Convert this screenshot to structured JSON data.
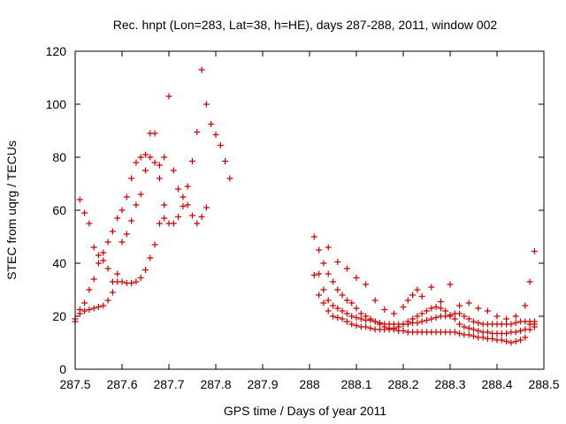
{
  "chart_data": {
    "type": "scatter",
    "title": "Rec. hnpt (Lon=283, Lat=38, h=HE), days 287-288, 2011, window 002",
    "xlabel": "GPS time / Days of year 2011",
    "ylabel": "STEC from uqrg / TECUs",
    "xlim": [
      287.5,
      288.5
    ],
    "ylim": [
      0,
      120
    ],
    "xticks": [
      287.5,
      287.6,
      287.7,
      287.8,
      287.9,
      288,
      288.1,
      288.2,
      288.3,
      288.4,
      288.5
    ],
    "xtick_labels": [
      "287.5",
      "287.6",
      "287.7",
      "287.8",
      "287.9",
      "288",
      "288.1",
      "288.2",
      "288.3",
      "288.4",
      "288.5"
    ],
    "yticks": [
      0,
      20,
      40,
      60,
      80,
      100,
      120
    ],
    "ytick_labels": [
      "0",
      "20",
      "40",
      "60",
      "80",
      "100",
      "120"
    ],
    "grid": false,
    "legend": "none",
    "marker": "+",
    "color": "#cc0000",
    "series": [
      {
        "x": [
          287.5,
          287.51,
          287.52,
          287.53,
          287.54,
          287.55,
          287.56,
          287.57,
          287.58,
          287.59,
          287.6,
          287.61,
          287.62,
          287.63,
          287.64,
          287.65,
          287.66,
          287.67,
          287.68,
          287.69,
          287.7,
          287.71,
          287.72,
          287.73,
          287.74,
          287.75,
          287.76,
          287.77,
          287.78,
          287.79,
          287.8,
          287.81,
          287.82,
          287.83
        ],
        "y": [
          19,
          21,
          22,
          22.5,
          23,
          23.5,
          24,
          26,
          29,
          33,
          33,
          32.5,
          32.5,
          33,
          34.5,
          37.5,
          42,
          47,
          55,
          57,
          55,
          55,
          57.5,
          61.5,
          69,
          78.5,
          89.5,
          113,
          100,
          92.5,
          88.5,
          84.5,
          78.5,
          72
        ]
      },
      {
        "x": [
          287.5,
          287.51,
          287.52,
          287.53,
          287.54,
          287.55,
          287.56,
          287.57,
          287.58,
          287.59,
          287.6,
          287.61,
          287.62,
          287.63,
          287.64,
          287.65,
          287.66,
          287.67,
          287.68,
          287.69
        ],
        "y": [
          18,
          22.5,
          25,
          30,
          34,
          40,
          44,
          48,
          52,
          57,
          60,
          65,
          72,
          78,
          80,
          81,
          89,
          89,
          72,
          62
        ]
      },
      {
        "x": [
          287.51,
          287.52,
          287.53,
          287.54,
          287.55,
          287.56,
          287.57,
          287.58,
          287.59,
          287.6,
          287.61,
          287.62,
          287.63,
          287.64,
          287.65,
          287.66,
          287.67,
          287.68,
          287.69,
          287.7,
          287.71,
          287.72,
          287.73,
          287.74,
          287.75,
          287.76,
          287.77,
          287.78
        ],
        "y": [
          64,
          59,
          55,
          46,
          43,
          41,
          38,
          33,
          36,
          48,
          51,
          56,
          62,
          66,
          75,
          80,
          78,
          77,
          80,
          103,
          75,
          68,
          65,
          62,
          58,
          55,
          57.5,
          61
        ]
      },
      {
        "x": [
          288.01,
          288.02,
          288.03,
          288.04,
          288.05,
          288.06,
          288.07,
          288.08,
          288.09,
          288.1,
          288.11,
          288.12,
          288.13,
          288.14,
          288.15,
          288.16,
          288.17,
          288.18,
          288.19,
          288.2,
          288.21,
          288.22,
          288.23,
          288.24,
          288.25,
          288.26,
          288.27,
          288.28,
          288.29,
          288.3,
          288.31,
          288.32,
          288.33,
          288.34,
          288.35,
          288.36,
          288.37,
          288.38,
          288.39,
          288.4,
          288.41,
          288.42,
          288.43,
          288.44,
          288.45,
          288.46,
          288.47,
          288.48
        ],
        "y": [
          50,
          45,
          40,
          36,
          33,
          30,
          28,
          26,
          25,
          23,
          21,
          20,
          19,
          18,
          17,
          16,
          15.5,
          15,
          14.5,
          14.5,
          14,
          14,
          14,
          14,
          14,
          14,
          14,
          14,
          14,
          14,
          14,
          13.5,
          13,
          13,
          12.5,
          12,
          12,
          11.5,
          11.5,
          11,
          11,
          10.5,
          10,
          10.5,
          11,
          12,
          15,
          16
        ]
      },
      {
        "x": [
          288.01,
          288.02,
          288.03,
          288.04,
          288.05,
          288.06,
          288.07,
          288.08,
          288.09,
          288.1,
          288.11,
          288.12,
          288.13,
          288.14,
          288.15,
          288.16,
          288.17,
          288.18,
          288.19,
          288.2,
          288.21,
          288.22,
          288.23,
          288.24,
          288.25,
          288.26,
          288.27,
          288.28,
          288.29,
          288.3,
          288.31,
          288.32,
          288.33,
          288.34,
          288.35,
          288.36,
          288.37,
          288.38,
          288.39,
          288.4,
          288.41,
          288.42,
          288.43,
          288.44,
          288.45,
          288.46,
          288.47,
          288.48
        ],
        "y": [
          35.5,
          28,
          25,
          22,
          20,
          19.5,
          19,
          18,
          17,
          16.5,
          16,
          16,
          15.5,
          15,
          15,
          15,
          15,
          15.5,
          16,
          17,
          18,
          19,
          20,
          21,
          22,
          23,
          23.5,
          23,
          22,
          20,
          19,
          17,
          16,
          15.5,
          15,
          14.5,
          14,
          14,
          13.5,
          13.5,
          13.5,
          13.5,
          14,
          14,
          14.5,
          15,
          17,
          17
        ]
      },
      {
        "x": [
          288.02,
          288.03,
          288.04,
          288.05,
          288.06,
          288.07,
          288.08,
          288.09,
          288.1,
          288.11,
          288.12,
          288.13,
          288.14,
          288.15,
          288.16,
          288.17,
          288.18,
          288.19,
          288.2,
          288.21,
          288.22,
          288.23,
          288.24,
          288.25,
          288.26,
          288.27,
          288.28,
          288.29,
          288.3,
          288.31,
          288.32,
          288.33,
          288.34,
          288.35,
          288.36,
          288.37,
          288.38,
          288.39,
          288.4,
          288.41,
          288.42,
          288.43,
          288.44,
          288.45,
          288.46,
          288.47,
          288.48
        ],
        "y": [
          36,
          30,
          26,
          24,
          23,
          22,
          21,
          20,
          19.5,
          19,
          18.5,
          18.5,
          18,
          17.5,
          17,
          17,
          17,
          17,
          17,
          17,
          17.5,
          17.5,
          18,
          18.5,
          19,
          19.5,
          20,
          20,
          20.5,
          21,
          21,
          20,
          19,
          18,
          17.5,
          17,
          17,
          17,
          17,
          17,
          17,
          17,
          17.5,
          18,
          18,
          18,
          18
        ]
      },
      {
        "x": [
          288.04,
          288.06,
          288.08,
          288.1,
          288.12,
          288.14,
          288.16,
          288.18,
          288.2,
          288.21,
          288.22,
          288.23,
          288.24,
          288.26,
          288.28,
          288.3,
          288.32,
          288.34,
          288.36,
          288.38,
          288.4,
          288.42,
          288.44,
          288.46,
          288.47,
          288.48
        ],
        "y": [
          46,
          40.5,
          38,
          34.5,
          32,
          26,
          22.5,
          21,
          23.5,
          26,
          28,
          30,
          27.5,
          31,
          25.5,
          32,
          24,
          25,
          23,
          22,
          20,
          19,
          20,
          24,
          33,
          44.5
        ]
      }
    ]
  }
}
